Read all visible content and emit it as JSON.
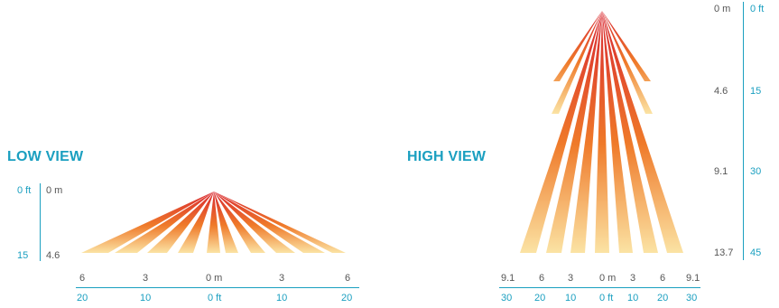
{
  "low_view": {
    "title": "LOW VIEW",
    "vertical_scale": {
      "ft": [
        "0 ft",
        "15"
      ],
      "m": [
        "0 m",
        "4.6"
      ]
    },
    "horizontal_scale": {
      "m": [
        "6",
        "3",
        "0 m",
        "3",
        "6"
      ],
      "ft": [
        "20",
        "10",
        "0 ft",
        "10",
        "20"
      ]
    }
  },
  "high_view": {
    "title": "HIGH VIEW",
    "vertical_scale": {
      "m": [
        "0 m",
        "4.6",
        "9.1",
        "13.7"
      ],
      "ft": [
        "0 ft",
        "15",
        "30",
        "45"
      ]
    },
    "horizontal_scale": {
      "m": [
        "9.1",
        "6",
        "3",
        "0 m",
        "3",
        "6",
        "9.1"
      ],
      "ft": [
        "30",
        "20",
        "10",
        "0 ft",
        "10",
        "20",
        "30"
      ]
    }
  },
  "colors": {
    "accent": "#1a9fc0",
    "beam_start": "#d8262f",
    "beam_mid": "#ef7a2a",
    "beam_end": "#fbe3a4",
    "text": "#555555"
  }
}
